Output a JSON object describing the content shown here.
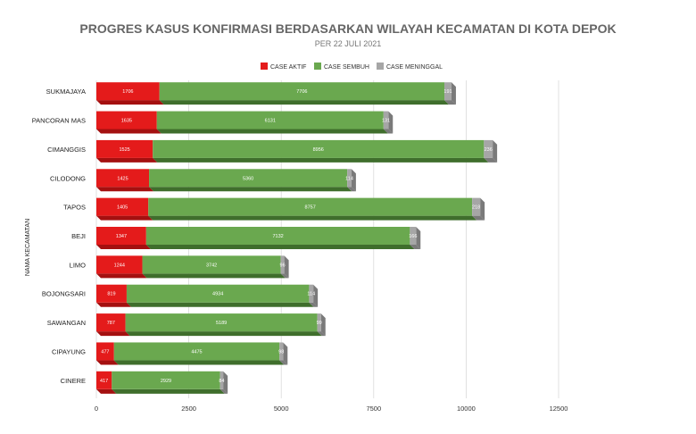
{
  "chart_data": {
    "type": "bar",
    "orientation": "horizontal",
    "stacked": true,
    "title": "PROGRES KASUS KONFIRMASI BERDASARKAN WILAYAH KECAMATAN DI KOTA DEPOK",
    "subtitle": "PER 22 JULI 2021",
    "ylabel": "NAMA KECAMATAN",
    "xlabel": "",
    "xlim": [
      0,
      12500
    ],
    "xticks": [
      "0",
      "2500",
      "5000",
      "7500",
      "10000",
      "12500"
    ],
    "grid": true,
    "legend_position": "top-center",
    "categories": [
      "SUKMAJAYA",
      "PANCORAN MAS",
      "CIMANGGIS",
      "CILODONG",
      "TAPOS",
      "BEJI",
      "LIMO",
      "BOJONGSARI",
      "SAWANGAN",
      "CIPAYUNG",
      "CINERE"
    ],
    "series": [
      {
        "name": "CASE AKTIF",
        "color": "#e41b1b",
        "side_color": "#a41010",
        "values": [
          1706,
          1635,
          1525,
          1425,
          1405,
          1347,
          1244,
          819,
          787,
          477,
          417
        ]
      },
      {
        "name": "CASE SEMBUH",
        "color": "#6aa84f",
        "side_color": "#3f6e2c",
        "values": [
          7706,
          6131,
          8956,
          5360,
          8757,
          7132,
          3742,
          4934,
          5189,
          4475,
          2929
        ]
      },
      {
        "name": "CASE MENINGGAL",
        "color": "#a6a6a6",
        "side_color": "#7a7a7a",
        "values": [
          191,
          131,
          236,
          114,
          218,
          166,
          96,
          114,
          99,
          98,
          84
        ]
      }
    ]
  }
}
